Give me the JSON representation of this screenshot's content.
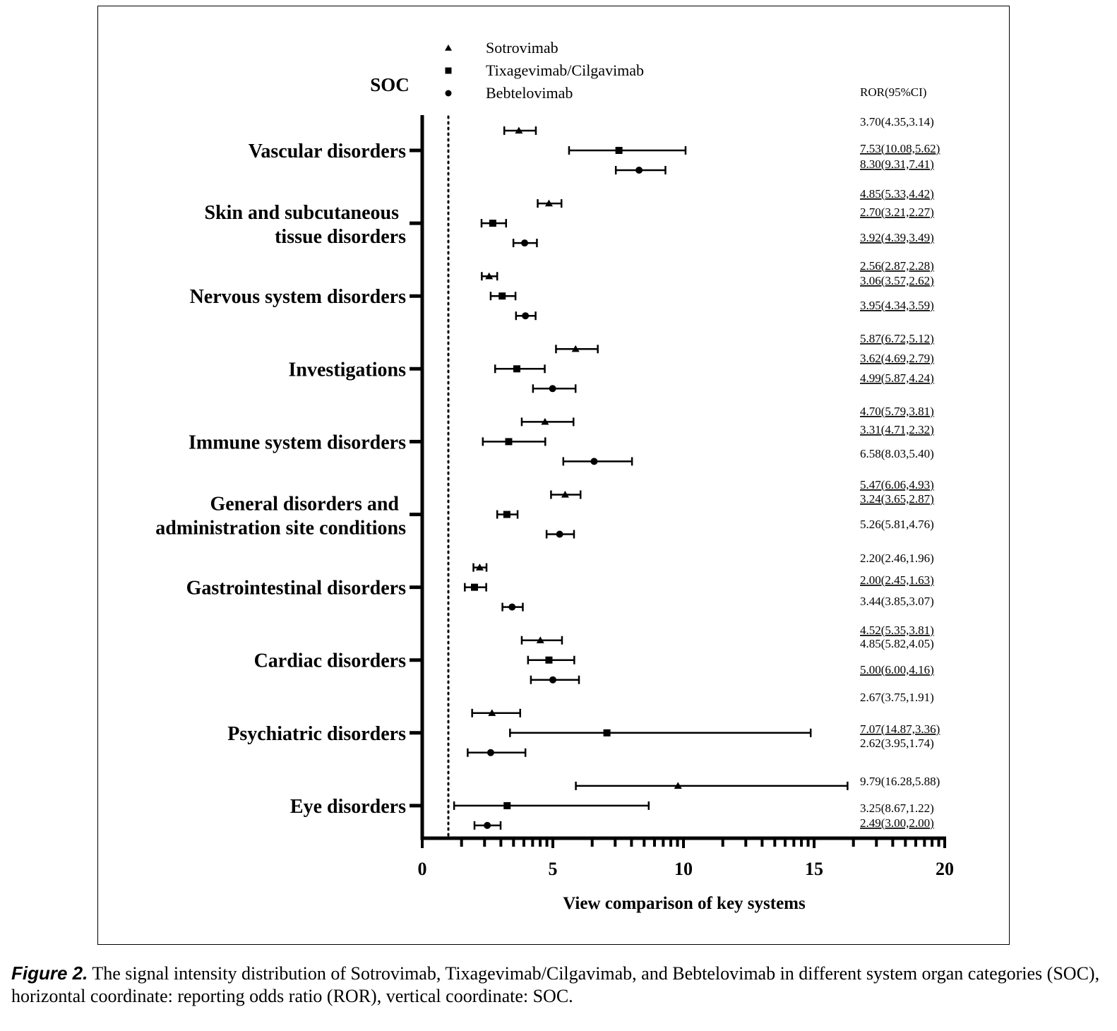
{
  "caption": {
    "label": "Figure 2.",
    "text": " The signal intensity distribution of Sotrovimab, Tixagevimab/Cilgavimab, and Bebtelovimab in different system organ categories (SOC), horizontal coordinate: reporting odds ratio (ROR), vertical coordinate: SOC."
  },
  "chart_data": {
    "type": "forest",
    "ylabel": "SOC",
    "xlabel": "View comparison of key systems",
    "xlim": [
      0,
      20
    ],
    "x_ticks": [
      0,
      5,
      10,
      15,
      20
    ],
    "reference_line": 1,
    "ror_header": "ROR(95%CI)",
    "legend": [
      {
        "name": "Sotrovimab",
        "marker": "triangle"
      },
      {
        "name": "Tixagevimab/Cilgavimab",
        "marker": "square"
      },
      {
        "name": "Bebtelovimab",
        "marker": "circle"
      }
    ],
    "categories": [
      {
        "label": [
          "Vascular disorders"
        ],
        "rows": [
          {
            "drug": "Sotrovimab",
            "ror": 3.7,
            "upper": 4.35,
            "lower": 3.14,
            "text": "3.70(4.35,3.14)"
          },
          {
            "drug": "Tixagevimab/Cilgavimab",
            "ror": 7.53,
            "upper": 10.08,
            "lower": 5.62,
            "text": "7.53(10.08,5.62)"
          },
          {
            "drug": "Bebtelovimab",
            "ror": 8.3,
            "upper": 9.31,
            "lower": 7.41,
            "text": "8.30(9.31,7.41)"
          }
        ]
      },
      {
        "label": [
          "Skin and subcutaneous",
          "tissue disorders"
        ],
        "rows": [
          {
            "drug": "Sotrovimab",
            "ror": 4.85,
            "upper": 5.33,
            "lower": 4.42,
            "text": "4.85(5.33,4.42)"
          },
          {
            "drug": "Tixagevimab/Cilgavimab",
            "ror": 2.7,
            "upper": 3.21,
            "lower": 2.27,
            "text": "2.70(3.21,2.27)"
          },
          {
            "drug": "Bebtelovimab",
            "ror": 3.92,
            "upper": 4.39,
            "lower": 3.49,
            "text": "3.92(4.39,3.49)"
          }
        ]
      },
      {
        "label": [
          "Nervous system disorders"
        ],
        "rows": [
          {
            "drug": "Sotrovimab",
            "ror": 2.56,
            "upper": 2.87,
            "lower": 2.28,
            "text": "2.56(2.87,2.28)"
          },
          {
            "drug": "Tixagevimab/Cilgavimab",
            "ror": 3.06,
            "upper": 3.57,
            "lower": 2.62,
            "text": "3.06(3.57,2.62)"
          },
          {
            "drug": "Bebtelovimab",
            "ror": 3.95,
            "upper": 4.34,
            "lower": 3.59,
            "text": "3.95(4.34,3.59)"
          }
        ]
      },
      {
        "label": [
          "Investigations"
        ],
        "rows": [
          {
            "drug": "Sotrovimab",
            "ror": 5.87,
            "upper": 6.72,
            "lower": 5.12,
            "text": "5.87(6.72,5.12)"
          },
          {
            "drug": "Tixagevimab/Cilgavimab",
            "ror": 3.62,
            "upper": 4.69,
            "lower": 2.79,
            "text": "3.62(4.69,2.79)"
          },
          {
            "drug": "Bebtelovimab",
            "ror": 4.99,
            "upper": 5.87,
            "lower": 4.24,
            "text": "4.99(5.87,4.24)"
          }
        ]
      },
      {
        "label": [
          "Immune system disorders"
        ],
        "rows": [
          {
            "drug": "Sotrovimab",
            "ror": 4.7,
            "upper": 5.79,
            "lower": 3.81,
            "text": "4.70(5.79,3.81)"
          },
          {
            "drug": "Tixagevimab/Cilgavimab",
            "ror": 3.31,
            "upper": 4.71,
            "lower": 2.32,
            "text": "3.31(4.71,2.32)"
          },
          {
            "drug": "Bebtelovimab",
            "ror": 6.58,
            "upper": 8.03,
            "lower": 5.4,
            "text": "6.58(8.03,5.40)"
          }
        ]
      },
      {
        "label": [
          "General disorders and",
          "administration site conditions"
        ],
        "rows": [
          {
            "drug": "Sotrovimab",
            "ror": 5.47,
            "upper": 6.06,
            "lower": 4.93,
            "text": "5.47(6.06,4.93)"
          },
          {
            "drug": "Tixagevimab/Cilgavimab",
            "ror": 3.24,
            "upper": 3.65,
            "lower": 2.87,
            "text": "3.24(3.65,2.87)"
          },
          {
            "drug": "Bebtelovimab",
            "ror": 5.26,
            "upper": 5.81,
            "lower": 4.76,
            "text": "5.26(5.81,4.76)"
          }
        ]
      },
      {
        "label": [
          "Gastrointestinal disorders"
        ],
        "rows": [
          {
            "drug": "Sotrovimab",
            "ror": 2.2,
            "upper": 2.46,
            "lower": 1.96,
            "text": "2.20(2.46,1.96)"
          },
          {
            "drug": "Tixagevimab/Cilgavimab",
            "ror": 2.0,
            "upper": 2.45,
            "lower": 1.63,
            "text": "2.00(2.45,1.63)"
          },
          {
            "drug": "Bebtelovimab",
            "ror": 3.44,
            "upper": 3.85,
            "lower": 3.07,
            "text": "3.44(3.85,3.07)"
          }
        ]
      },
      {
        "label": [
          "Cardiac disorders"
        ],
        "rows": [
          {
            "drug": "Sotrovimab",
            "ror": 4.52,
            "upper": 5.35,
            "lower": 3.81,
            "text": "4.52(5.35,3.81)"
          },
          {
            "drug": "Tixagevimab/Cilgavimab",
            "ror": 4.85,
            "upper": 5.82,
            "lower": 4.05,
            "text": "4.85(5.82,4.05)"
          },
          {
            "drug": "Bebtelovimab",
            "ror": 5.0,
            "upper": 6.0,
            "lower": 4.16,
            "text": "5.00(6.00,4.16)"
          }
        ]
      },
      {
        "label": [
          "Psychiatric disorders"
        ],
        "rows": [
          {
            "drug": "Sotrovimab",
            "ror": 2.67,
            "upper": 3.75,
            "lower": 1.91,
            "text": "2.67(3.75,1.91)"
          },
          {
            "drug": "Tixagevimab/Cilgavimab",
            "ror": 7.07,
            "upper": 14.87,
            "lower": 3.36,
            "text": "7.07(14.87,3.36)"
          },
          {
            "drug": "Bebtelovimab",
            "ror": 2.62,
            "upper": 3.95,
            "lower": 1.74,
            "text": "2.62(3.95,1.74)"
          }
        ]
      },
      {
        "label": [
          "Eye disorders"
        ],
        "rows": [
          {
            "drug": "Sotrovimab",
            "ror": 9.79,
            "upper": 16.28,
            "lower": 5.88,
            "text": "9.79(16.28,5.88)"
          },
          {
            "drug": "Tixagevimab/Cilgavimab",
            "ror": 3.25,
            "upper": 8.67,
            "lower": 1.22,
            "text": "3.25(8.67,1.22)"
          },
          {
            "drug": "Bebtelovimab",
            "ror": 2.49,
            "upper": 3.0,
            "lower": 2.0,
            "text": "2.49(3.00,2.00)"
          }
        ]
      }
    ]
  }
}
